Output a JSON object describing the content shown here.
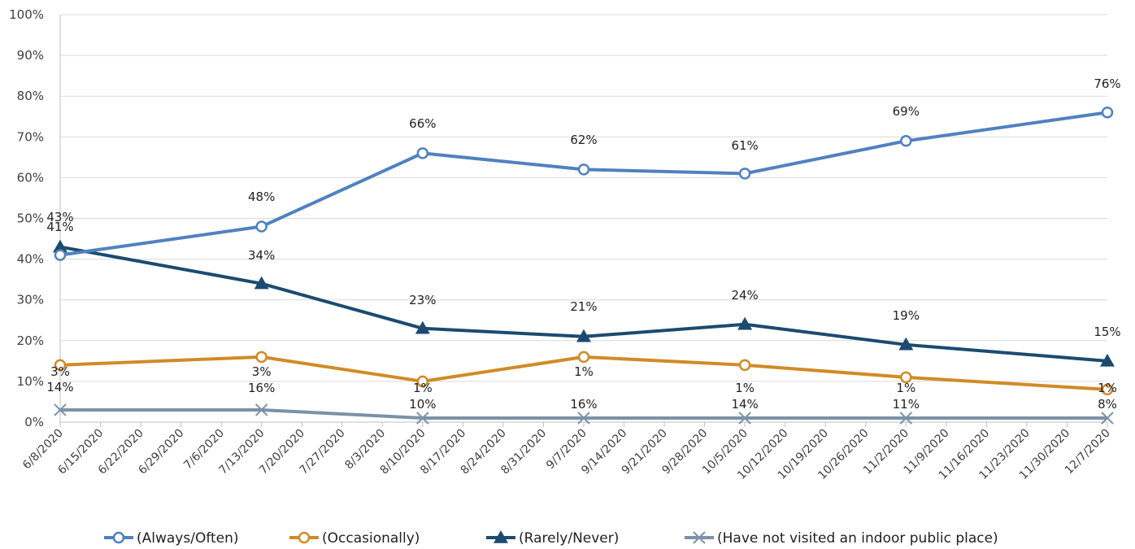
{
  "chart_data": {
    "type": "line",
    "x_ticks": [
      "6/8/2020",
      "6/15/2020",
      "6/22/2020",
      "6/29/2020",
      "7/6/2020",
      "7/13/2020",
      "7/20/2020",
      "7/27/2020",
      "8/3/2020",
      "8/10/2020",
      "8/17/2020",
      "8/24/2020",
      "8/31/2020",
      "9/7/2020",
      "9/14/2020",
      "9/21/2020",
      "9/28/2020",
      "10/5/2020",
      "10/12/2020",
      "10/19/2020",
      "10/26/2020",
      "11/2/2020",
      "11/9/2020",
      "11/16/2020",
      "11/23/2020",
      "11/30/2020",
      "12/7/2020"
    ],
    "y_ticks": [
      "0%",
      "10%",
      "20%",
      "30%",
      "40%",
      "50%",
      "60%",
      "70%",
      "80%",
      "90%",
      "100%"
    ],
    "ylim": [
      0,
      100
    ],
    "grid": true,
    "legend_position": "bottom",
    "series": [
      {
        "name": "(Always/Often)",
        "color": "#5081c0",
        "marker": "circle",
        "x": [
          "6/8/2020",
          "7/13/2020",
          "8/10/2020",
          "9/7/2020",
          "10/5/2020",
          "11/2/2020",
          "12/7/2020"
        ],
        "values": [
          41,
          48,
          66,
          62,
          61,
          69,
          76
        ],
        "labels": [
          "41%",
          "48%",
          "66%",
          "62%",
          "61%",
          "69%",
          "76%"
        ]
      },
      {
        "name": "(Occasionally)",
        "color": "#d08b27",
        "marker": "circle",
        "x": [
          "6/8/2020",
          "7/13/2020",
          "8/10/2020",
          "9/7/2020",
          "10/5/2020",
          "11/2/2020",
          "12/7/2020"
        ],
        "values": [
          14,
          16,
          10,
          16,
          14,
          11,
          8
        ],
        "labels": [
          "14%",
          "16%",
          "10%",
          "16%",
          "14%",
          "11%",
          "8%"
        ]
      },
      {
        "name": "(Rarely/Never)",
        "color": "#1c4a70",
        "marker": "triangle",
        "x": [
          "6/8/2020",
          "7/13/2020",
          "8/10/2020",
          "9/7/2020",
          "10/5/2020",
          "11/2/2020",
          "12/7/2020"
        ],
        "values": [
          43,
          34,
          23,
          21,
          24,
          19,
          15
        ],
        "labels": [
          "43%",
          "34%",
          "23%",
          "21%",
          "24%",
          "19%",
          "15%"
        ]
      },
      {
        "name": "(Have not visited an indoor public place)",
        "color": "#7a91a8",
        "marker": "x",
        "x": [
          "6/8/2020",
          "7/13/2020",
          "8/10/2020",
          "9/7/2020",
          "10/5/2020",
          "11/2/2020",
          "12/7/2020"
        ],
        "values": [
          3,
          3,
          1,
          1,
          1,
          1,
          1
        ],
        "labels": [
          "3%",
          "3%",
          "1%",
          "1%",
          "1%",
          "1%",
          "1%"
        ]
      }
    ]
  }
}
